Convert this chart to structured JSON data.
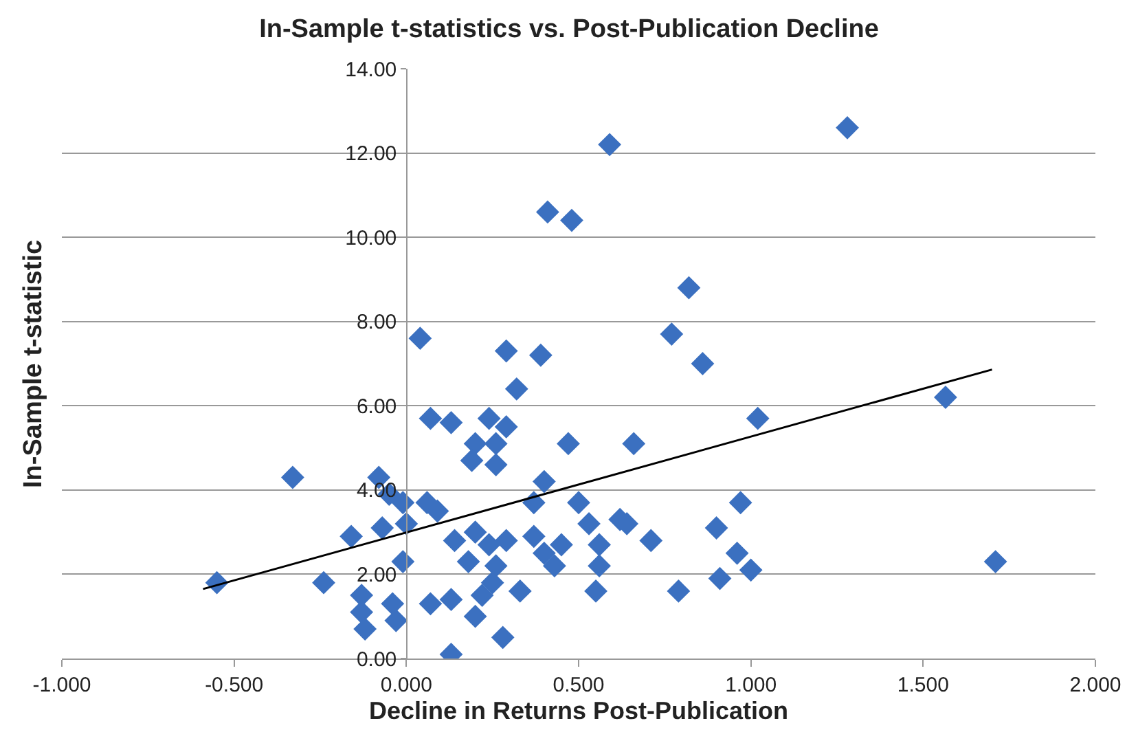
{
  "chart_data": {
    "type": "scatter",
    "title": "In-Sample t-statistics vs. Post-Publication Decline",
    "xlabel": "Decline in Returns Post-Publication",
    "ylabel": "In-Sample t-statistic",
    "series": [
      {
        "color": "#3b70c0",
        "marker": "diamond",
        "x": [
          1.28,
          0.59,
          0.41,
          0.48,
          0.04,
          0.29,
          0.39,
          0.82,
          0.77,
          0.86,
          1.02,
          1.565,
          1.71,
          0.97,
          0.9,
          0.71,
          0.96,
          0.91,
          1.0,
          0.79,
          0.66,
          0.64,
          -0.33,
          0.32,
          0.07,
          0.13,
          0.24,
          0.29,
          0.26,
          0.2,
          0.19,
          0.26,
          0.47,
          0.4,
          0.37,
          0.5,
          -0.08,
          -0.05,
          -0.01,
          0.06,
          0.09,
          -0.16,
          -0.07,
          0.0,
          -0.01,
          0.14,
          0.2,
          0.24,
          0.29,
          0.18,
          0.26,
          0.37,
          0.4,
          0.45,
          0.43,
          0.53,
          0.56,
          0.62,
          0.56,
          -0.24,
          -0.13,
          -0.13,
          -0.12,
          -0.03,
          -0.04,
          0.07,
          0.13,
          0.2,
          0.22,
          0.25,
          0.33,
          0.28,
          0.13,
          0.55,
          -0.55
        ],
        "values": [
          12.6,
          12.2,
          10.6,
          10.4,
          7.6,
          7.3,
          7.2,
          8.8,
          7.7,
          7.0,
          5.7,
          6.2,
          2.3,
          3.7,
          3.1,
          2.8,
          2.5,
          1.9,
          2.1,
          1.6,
          5.1,
          3.2,
          4.3,
          6.4,
          5.7,
          5.6,
          5.7,
          5.5,
          5.1,
          5.1,
          4.7,
          4.6,
          5.1,
          4.2,
          3.7,
          3.7,
          4.3,
          3.9,
          3.7,
          3.7,
          3.5,
          2.9,
          3.1,
          3.2,
          2.3,
          2.8,
          3.0,
          2.7,
          2.8,
          2.3,
          2.2,
          2.9,
          2.5,
          2.7,
          2.2,
          3.2,
          2.7,
          3.3,
          2.2,
          1.8,
          1.5,
          1.1,
          0.7,
          0.9,
          1.3,
          1.3,
          1.4,
          1.0,
          1.5,
          1.8,
          1.6,
          0.5,
          0.1,
          1.6,
          1.8
        ]
      },
      {
        "type": "line",
        "color": "#000000",
        "marker": "none",
        "line_style": "solid",
        "x": [
          -0.59,
          1.7
        ],
        "values": [
          1.65,
          6.86
        ]
      }
    ],
    "xlim": [
      -1,
      2
    ],
    "xticks": [
      {
        "value": -1,
        "label": "-1.000"
      },
      {
        "value": -0.5,
        "label": "-0.500"
      },
      {
        "value": 0,
        "label": "0.000"
      },
      {
        "value": 0.5,
        "label": "0.500"
      },
      {
        "value": 1,
        "label": "1.000"
      },
      {
        "value": 1.5,
        "label": "1.500"
      },
      {
        "value": 2,
        "label": "2.000"
      }
    ],
    "ylim": [
      0,
      14
    ],
    "yticks": [
      {
        "value": 0,
        "label": "0.00"
      },
      {
        "value": 2,
        "label": "2.00"
      },
      {
        "value": 4,
        "label": "4.00"
      },
      {
        "value": 6,
        "label": "6.00"
      },
      {
        "value": 8,
        "label": "8.00"
      },
      {
        "value": 10,
        "label": "10.00"
      },
      {
        "value": 12,
        "label": "12.00"
      },
      {
        "value": 14,
        "label": "14.00"
      }
    ],
    "grid": "y",
    "legend": false
  }
}
